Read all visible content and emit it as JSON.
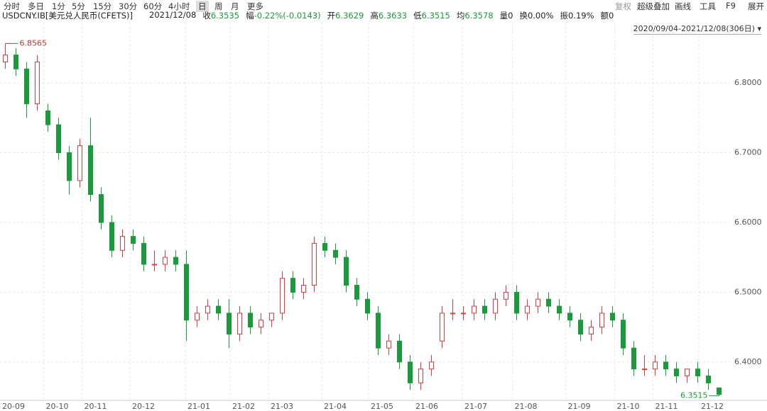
{
  "header": {
    "toolbar": [
      "分时",
      "多日",
      "1分",
      "5分",
      "15分",
      "30分",
      "60分",
      "4小时",
      "日",
      "周",
      "月",
      "更多"
    ],
    "active_index": 8,
    "tools": [
      "复权",
      "超级叠加",
      "画线",
      "工具",
      "F9",
      "展开"
    ],
    "symbol": "USDCNY.IB[美元兑人民币(CFETS)]",
    "date": "2021/12/08",
    "fields": [
      {
        "label": "收",
        "value": "6.3535",
        "color": "#1a9a3a"
      },
      {
        "label": "幅",
        "value": "-0.22%(-0.0143)",
        "color": "#1a9a3a"
      },
      {
        "label": "开",
        "value": "6.3629",
        "color": "#1a9a3a"
      },
      {
        "label": "高",
        "value": "6.3633",
        "color": "#1a9a3a"
      },
      {
        "label": "低",
        "value": "6.3515",
        "color": "#1a9a3a"
      },
      {
        "label": "均",
        "value": "6.3578",
        "color": "#1a9a3a"
      },
      {
        "label": "量",
        "value": "0",
        "color": "#222"
      },
      {
        "label": "换",
        "value": "0.00%",
        "color": "#222"
      },
      {
        "label": "振",
        "value": "0.19%",
        "color": "#222"
      },
      {
        "label": "额",
        "value": "0",
        "color": "#222"
      }
    ],
    "date_range": "2020/09/04-2021/12/08(306日)"
  },
  "chart_data": {
    "type": "candlestick",
    "up_color": "#e0393e",
    "down_color": "#1a9a3a",
    "open": [
      6.83,
      6.84,
      6.82,
      6.77,
      6.76,
      6.74,
      6.7,
      6.66,
      6.71,
      6.64,
      6.6,
      6.56,
      6.58,
      6.57,
      6.54,
      6.54,
      6.55,
      6.54,
      6.46,
      6.47,
      6.48,
      6.47,
      6.44,
      6.47,
      6.45,
      6.46,
      6.47,
      6.52,
      6.5,
      6.51,
      6.57,
      6.56,
      6.55,
      6.51,
      6.49,
      6.47,
      6.42,
      6.43,
      6.4,
      6.37,
      6.39,
      6.43,
      6.47,
      6.47,
      6.47,
      6.48,
      6.47,
      6.49,
      6.5,
      6.47,
      6.48,
      6.49,
      6.48,
      6.47,
      6.46,
      6.44,
      6.45,
      6.47,
      6.46,
      6.42,
      6.39,
      6.39,
      6.4,
      6.39,
      6.38,
      6.39,
      6.38,
      6.3629
    ],
    "high": [
      6.8565,
      6.85,
      6.83,
      6.84,
      6.77,
      6.75,
      6.71,
      6.72,
      6.75,
      6.65,
      6.61,
      6.59,
      6.59,
      6.58,
      6.56,
      6.56,
      6.56,
      6.56,
      6.48,
      6.49,
      6.49,
      6.49,
      6.48,
      6.48,
      6.47,
      6.47,
      6.53,
      6.53,
      6.52,
      6.58,
      6.58,
      6.57,
      6.56,
      6.52,
      6.5,
      6.48,
      6.44,
      6.44,
      6.41,
      6.4,
      6.41,
      6.48,
      6.49,
      6.48,
      6.49,
      6.49,
      6.5,
      6.51,
      6.51,
      6.49,
      6.5,
      6.5,
      6.49,
      6.48,
      6.47,
      6.46,
      6.48,
      6.48,
      6.47,
      6.43,
      6.41,
      6.41,
      6.41,
      6.4,
      6.39,
      6.4,
      6.39,
      6.3633
    ],
    "low": [
      6.82,
      6.81,
      6.75,
      6.76,
      6.73,
      6.69,
      6.64,
      6.65,
      6.63,
      6.59,
      6.55,
      6.55,
      6.56,
      6.53,
      6.53,
      6.53,
      6.53,
      6.43,
      6.45,
      6.46,
      6.46,
      6.42,
      6.43,
      6.44,
      6.44,
      6.45,
      6.46,
      6.49,
      6.49,
      6.5,
      6.55,
      6.54,
      6.5,
      6.48,
      6.46,
      6.41,
      6.41,
      6.39,
      6.36,
      6.36,
      6.38,
      6.42,
      6.46,
      6.46,
      6.46,
      6.46,
      6.46,
      6.48,
      6.46,
      6.46,
      6.47,
      6.47,
      6.46,
      6.45,
      6.43,
      6.43,
      6.44,
      6.45,
      6.41,
      6.38,
      6.38,
      6.38,
      6.38,
      6.37,
      6.37,
      6.37,
      6.36,
      6.3515
    ],
    "close": [
      6.84,
      6.82,
      6.77,
      6.83,
      6.74,
      6.7,
      6.66,
      6.71,
      6.64,
      6.6,
      6.56,
      6.58,
      6.57,
      6.54,
      6.54,
      6.55,
      6.54,
      6.46,
      6.47,
      6.48,
      6.47,
      6.44,
      6.47,
      6.45,
      6.46,
      6.47,
      6.52,
      6.5,
      6.51,
      6.57,
      6.56,
      6.55,
      6.51,
      6.49,
      6.47,
      6.42,
      6.43,
      6.4,
      6.37,
      6.39,
      6.4,
      6.47,
      6.47,
      6.47,
      6.48,
      6.47,
      6.49,
      6.5,
      6.47,
      6.48,
      6.49,
      6.48,
      6.47,
      6.46,
      6.44,
      6.45,
      6.47,
      6.46,
      6.42,
      6.39,
      6.39,
      6.4,
      6.39,
      6.38,
      6.39,
      6.38,
      6.37,
      6.3535
    ],
    "xlim": [
      -0.5,
      67.5
    ],
    "xticks": [
      {
        "value": -0.5,
        "label": "20-09"
      },
      {
        "value": 3.6,
        "label": "20-10"
      },
      {
        "value": 7.2,
        "label": "20-11"
      },
      {
        "value": 11.7,
        "label": "20-12"
      },
      {
        "value": 16.9,
        "label": "21-01"
      },
      {
        "value": 21.1,
        "label": "21-02"
      },
      {
        "value": 24.7,
        "label": "21-03"
      },
      {
        "value": 29.7,
        "label": "21-04"
      },
      {
        "value": 34.1,
        "label": "21-05"
      },
      {
        "value": 38.3,
        "label": "21-06"
      },
      {
        "value": 42.9,
        "label": "21-07"
      },
      {
        "value": 47.6,
        "label": "21-08"
      },
      {
        "value": 52.6,
        "label": "21-09"
      },
      {
        "value": 57.2,
        "label": "21-10"
      },
      {
        "value": 60.8,
        "label": "21-11"
      },
      {
        "value": 65.1,
        "label": "21-12"
      }
    ],
    "ylim": [
      6.345,
      6.866
    ],
    "yticks": [
      {
        "value": 6.4,
        "label": "6.4000"
      },
      {
        "value": 6.5,
        "label": "6.5000"
      },
      {
        "value": 6.6,
        "label": "6.6000"
      },
      {
        "value": 6.7,
        "label": "6.7000"
      },
      {
        "value": 6.8,
        "label": "6.8000"
      }
    ],
    "grid": true
  }
}
